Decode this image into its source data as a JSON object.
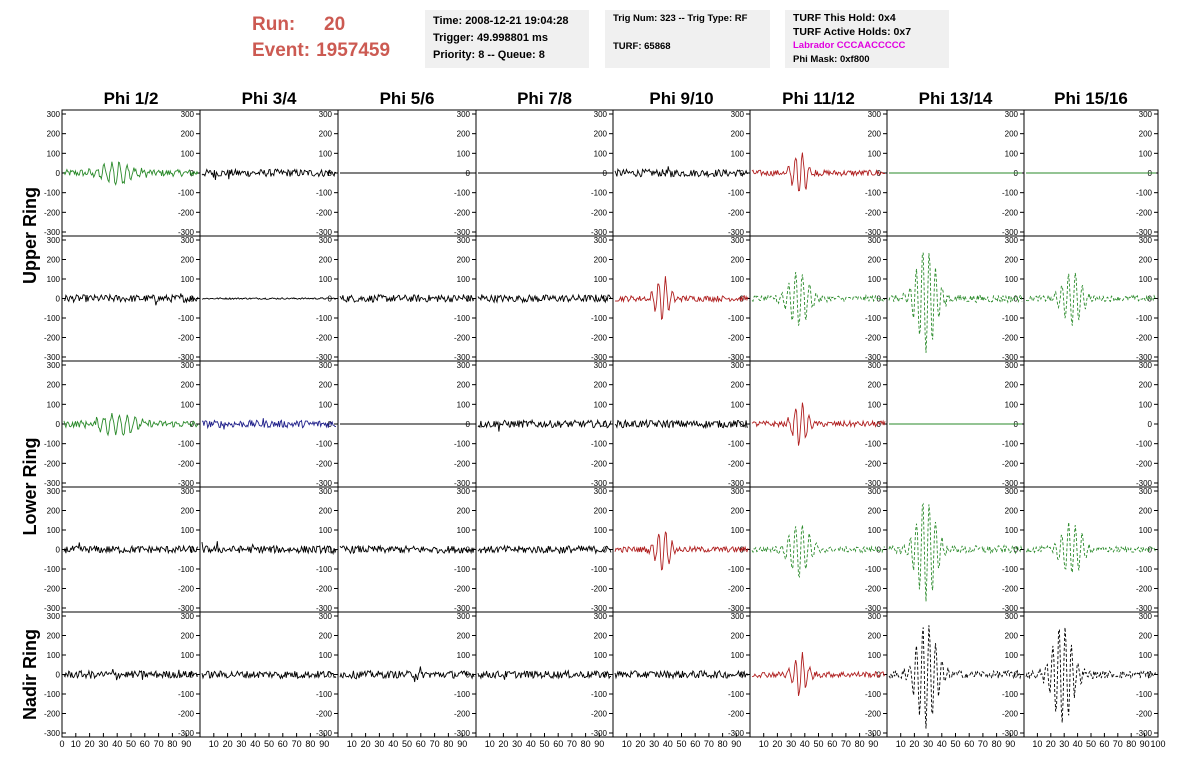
{
  "header": {
    "run_label": "Run:",
    "run_value": "20",
    "event_label": "Event:",
    "event_value": "1957459"
  },
  "info_box_1": {
    "time": "Time: 2008-12-21 19:04:28",
    "trigger": "Trigger: 49.998801 ms",
    "priority": "Priority: 8 -- Queue: 8"
  },
  "info_box_2": {
    "trig": "Trig Num: 323 -- Trig Type: RF",
    "turf": "TURF: 65868"
  },
  "info_box_3": {
    "this_hold": "TURF This Hold: 0x4",
    "active_holds": "TURF Active Holds: 0x7",
    "labrador": "Labrador CCCAACCCCC",
    "phi_mask": "Phi Mask: 0xf800"
  },
  "columns": [
    "Phi 1/2",
    "Phi 3/4",
    "Phi 5/6",
    "Phi 7/8",
    "Phi 9/10",
    "Phi 11/12",
    "Phi 13/14",
    "Phi 15/16"
  ],
  "ring_labels": [
    "Upper Ring",
    "Lower Ring",
    "Nadir Ring"
  ],
  "axis": {
    "y_ticks": [
      "300",
      "200",
      "100",
      "0",
      "-100",
      "-200",
      "-300"
    ],
    "x_ticks": [
      "0",
      "10",
      "20",
      "30",
      "40",
      "50",
      "60",
      "70",
      "80",
      "90",
      "100"
    ]
  },
  "colors": {
    "black": "#000000",
    "green": "#2a8a2a",
    "red": "#b02020",
    "blue": "#20208a",
    "title_red": "#cc5a52",
    "magenta": "#e000e0"
  },
  "chart_data": {
    "type": "line",
    "xlim": [
      0,
      100
    ],
    "ylim": [
      -300,
      300
    ],
    "panels": [
      [
        "green",
        "black",
        "black-flat",
        "black-flat",
        "black",
        "red",
        "green-flat",
        "green-flat"
      ],
      [
        "black",
        "black-small",
        "black",
        "black",
        "red",
        "green-dash-pulse",
        "green-dash-big",
        "green-dash-pulse"
      ],
      [
        "green",
        "blue",
        "black-flat",
        "black",
        "black",
        "red",
        "green-flat",
        "none"
      ],
      [
        "black",
        "black",
        "black",
        "black",
        "red",
        "green-dash-pulse",
        "green-dash-big",
        "green-dash-pulse"
      ],
      [
        "black",
        "black",
        "black",
        "black",
        "black",
        "red",
        "black-dash-big",
        "black-dash-big"
      ]
    ]
  }
}
